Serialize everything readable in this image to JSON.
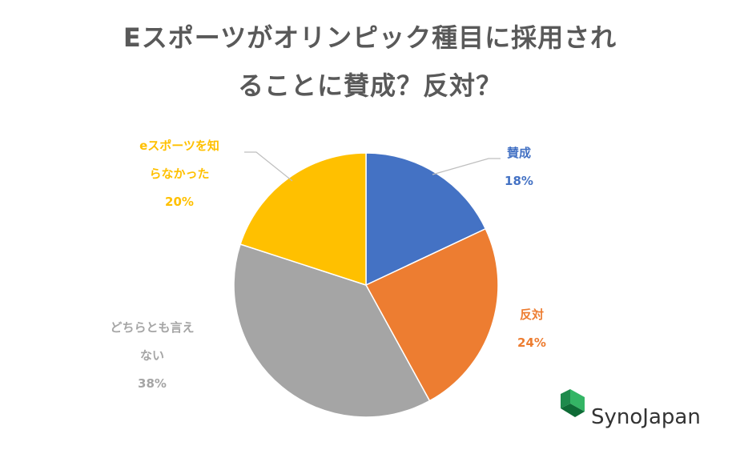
{
  "title_line1": "Eスポーツがオリンピック種目に採用され",
  "title_line2": "ることに賛成？反対？",
  "logo": {
    "text": "SynoJapan",
    "icon": "synojapan-logo-icon"
  },
  "chart_data": {
    "type": "pie",
    "title": "Eスポーツがオリンピック種目に採用されることに賛成？反対？",
    "slices": [
      {
        "label_lines": [
          "賛成"
        ],
        "value": 18,
        "pct_text": "18%",
        "color": "#4472c4"
      },
      {
        "label_lines": [
          "反対"
        ],
        "value": 24,
        "pct_text": "24%",
        "color": "#ed7d31"
      },
      {
        "label_lines": [
          "どちらとも言え",
          "ない"
        ],
        "value": 38,
        "pct_text": "38%",
        "color": "#a5a5a5"
      },
      {
        "label_lines": [
          "eスポーツを知",
          "らなかった"
        ],
        "value": 20,
        "pct_text": "20%",
        "color": "#ffc000"
      }
    ]
  }
}
